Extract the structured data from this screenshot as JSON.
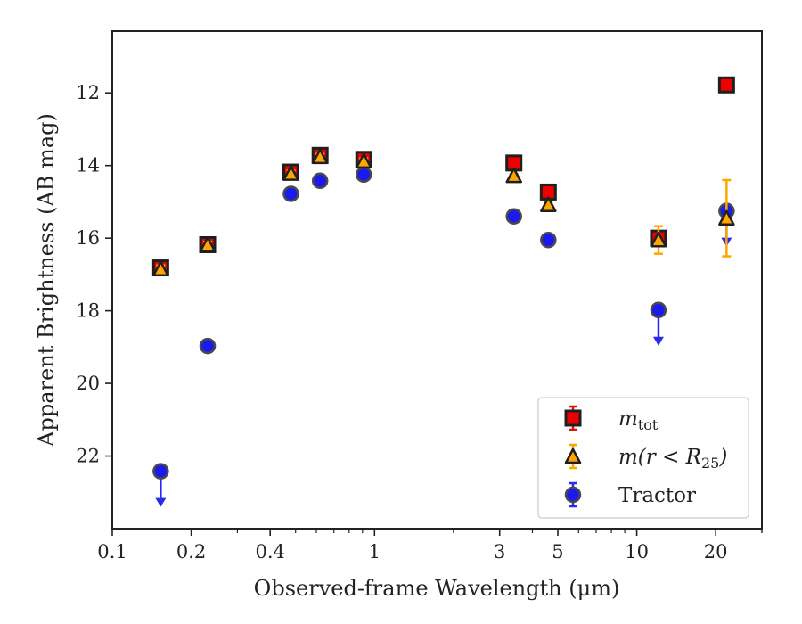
{
  "chart_data": {
    "type": "scatter",
    "xlabel": "Observed-frame Wavelength (μm)",
    "ylabel": "Apparent Brightness (AB mag)",
    "xscale": "log",
    "xlim": [
      0.1,
      30
    ],
    "ylim": [
      24,
      10.3
    ],
    "y_inverted": true,
    "x_ticks": [
      {
        "value": 0.1,
        "label": "0.1"
      },
      {
        "value": 0.2,
        "label": "0.2"
      },
      {
        "value": 0.4,
        "label": "0.4"
      },
      {
        "value": 1,
        "label": "1"
      },
      {
        "value": 3,
        "label": "3"
      },
      {
        "value": 5,
        "label": "5"
      },
      {
        "value": 10,
        "label": "10"
      },
      {
        "value": 20,
        "label": "20"
      }
    ],
    "y_ticks": [
      {
        "value": 12,
        "label": "12"
      },
      {
        "value": 14,
        "label": "14"
      },
      {
        "value": 16,
        "label": "16"
      },
      {
        "value": 18,
        "label": "18"
      },
      {
        "value": 20,
        "label": "20"
      },
      {
        "value": 22,
        "label": "22"
      }
    ],
    "legend_position": "lower right",
    "series": [
      {
        "name": "m_tot",
        "label_base": "m",
        "label_sub": "tot",
        "marker": "square",
        "color": "#ee0000",
        "errcolor": "#dd1111",
        "points": [
          {
            "x": 0.153,
            "y": 16.82,
            "err": 0.12
          },
          {
            "x": 0.231,
            "y": 16.18,
            "err": 0.08
          },
          {
            "x": 0.48,
            "y": 14.18,
            "err": 0.08
          },
          {
            "x": 0.62,
            "y": 13.72,
            "err": 0.08
          },
          {
            "x": 0.91,
            "y": 13.83,
            "err": 0.08
          },
          {
            "x": 3.4,
            "y": 13.93,
            "err": 0.05
          },
          {
            "x": 4.6,
            "y": 14.73,
            "err": 0.06
          },
          {
            "x": 12.1,
            "y": 16.0,
            "err": 0.12
          },
          {
            "x": 22.0,
            "y": 11.78,
            "err": 0.05
          }
        ]
      },
      {
        "name": "m(r < R25)",
        "label_base": "m(r < R",
        "label_sub": "25",
        "label_end": ")",
        "marker": "triangle",
        "color": "#ffa500",
        "errcolor": "#ffa500",
        "points": [
          {
            "x": 0.153,
            "y": 16.85,
            "err": 0.1
          },
          {
            "x": 0.231,
            "y": 16.18,
            "err": 0.08
          },
          {
            "x": 0.48,
            "y": 14.22,
            "err": 0.08
          },
          {
            "x": 0.62,
            "y": 13.76,
            "err": 0.08
          },
          {
            "x": 0.91,
            "y": 13.88,
            "err": 0.08
          },
          {
            "x": 3.4,
            "y": 14.28,
            "err": 0.05
          },
          {
            "x": 4.6,
            "y": 15.08,
            "err": 0.06
          },
          {
            "x": 12.1,
            "y": 16.05,
            "err": 0.38
          },
          {
            "x": 22.0,
            "y": 15.45,
            "err": 1.05
          }
        ]
      },
      {
        "name": "Tractor",
        "label_base": "Tractor",
        "marker": "circle",
        "color": "#1a1aee",
        "errcolor": "#2a2aee",
        "points": [
          {
            "x": 0.153,
            "y": 22.42,
            "upper_limit": true
          },
          {
            "x": 0.231,
            "y": 18.97
          },
          {
            "x": 0.48,
            "y": 14.78
          },
          {
            "x": 0.62,
            "y": 14.42
          },
          {
            "x": 0.91,
            "y": 14.25
          },
          {
            "x": 3.4,
            "y": 15.4
          },
          {
            "x": 4.6,
            "y": 16.05
          },
          {
            "x": 12.1,
            "y": 17.98,
            "upper_limit": true
          },
          {
            "x": 22.0,
            "y": 15.25,
            "upper_limit": true
          }
        ]
      }
    ]
  }
}
